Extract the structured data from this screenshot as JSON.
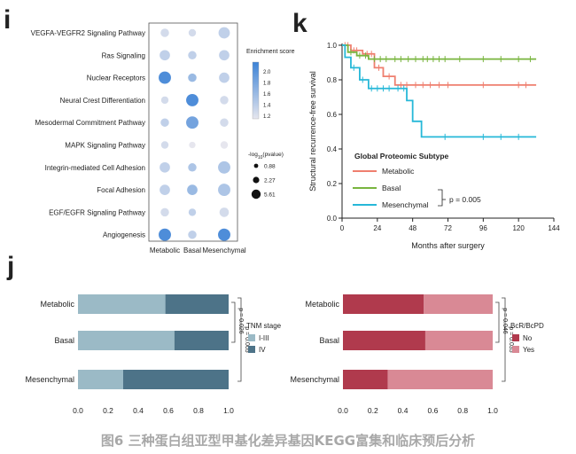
{
  "caption": "图6 三种蛋白组亚型甲基化差异基因KEGG富集和临床预后分析",
  "panels": {
    "i": "i",
    "j": "j",
    "k": "k"
  },
  "chart_data": [
    {
      "panel": "i",
      "type": "dot",
      "categories_x": [
        "Metabolic",
        "Basal",
        "Mesenchymal"
      ],
      "categories_y": [
        "VEGFA-VEGFR2 Signaling Pathway",
        "Ras Signaling",
        "Nuclear Receptors",
        "Neural Crest Differentiation",
        "Mesodermal Commitment Pathway",
        "MAPK Signaling Pathway",
        "Integrin-mediated Cell Adhesion",
        "Focal Adhesion",
        "EGF/EGFR Signaling Pathway",
        "Angiogenesis"
      ],
      "enrichment": [
        [
          1.3,
          1.3,
          1.4
        ],
        [
          1.4,
          1.4,
          1.4
        ],
        [
          2.0,
          1.6,
          1.4
        ],
        [
          1.3,
          2.0,
          1.3
        ],
        [
          1.4,
          1.8,
          1.3
        ],
        [
          1.3,
          1.2,
          1.2
        ],
        [
          1.4,
          1.5,
          1.5
        ],
        [
          1.4,
          1.6,
          1.5
        ],
        [
          1.3,
          1.4,
          1.3
        ],
        [
          2.0,
          1.4,
          2.0
        ]
      ],
      "neglog10p": [
        [
          2.5,
          2.0,
          4.0
        ],
        [
          3.5,
          2.5,
          3.5
        ],
        [
          4.5,
          2.5,
          3.5
        ],
        [
          2.0,
          4.5,
          2.5
        ],
        [
          2.5,
          4.5,
          2.5
        ],
        [
          2.0,
          1.5,
          2.0
        ],
        [
          3.5,
          2.5,
          4.5
        ],
        [
          3.5,
          3.5,
          4.5
        ],
        [
          2.5,
          2.0,
          3.0
        ],
        [
          4.5,
          2.5,
          4.5
        ]
      ],
      "colorbar": {
        "title": "Enrichment score",
        "ticks": [
          "2.0",
          "1.8",
          "1.6",
          "1.4",
          "1.2"
        ],
        "range": [
          1.2,
          2.1
        ],
        "low_color": "#e6e6ee",
        "high_color": "#3b82d6"
      },
      "size_legend": {
        "title": "-log10(pvalue)",
        "title_main": "-log",
        "title_sub": "10",
        "title_tail": "(pvalue)",
        "values": [
          "0.88",
          "2.27",
          "5.61"
        ]
      }
    },
    {
      "panel": "k",
      "type": "line",
      "title": "Global Proteomic Subtype",
      "xlabel": "Months after surgery",
      "ylabel": "Structural recurrence-free survival",
      "xlim": [
        0,
        144
      ],
      "ylim": [
        0,
        1.0
      ],
      "xticks": [
        "0",
        "24",
        "48",
        "72",
        "96",
        "120",
        "144"
      ],
      "yticks": [
        "0.0",
        "0.2",
        "0.4",
        "0.6",
        "0.8",
        "1.0"
      ],
      "series": [
        {
          "name": "Metabolic",
          "color": "#ef7f6f",
          "steps": [
            [
              0,
              1.0
            ],
            [
              6,
              0.97
            ],
            [
              14,
              0.95
            ],
            [
              22,
              0.87
            ],
            [
              28,
              0.82
            ],
            [
              36,
              0.77
            ],
            [
              132,
              0.77
            ]
          ],
          "censor": [
            2,
            4,
            8,
            10,
            17,
            20,
            25,
            32,
            40,
            44,
            50,
            55,
            60,
            66,
            72,
            96,
            120,
            125
          ]
        },
        {
          "name": "Basal",
          "color": "#79b53f",
          "steps": [
            [
              0,
              1.0
            ],
            [
              4,
              0.96
            ],
            [
              10,
              0.94
            ],
            [
              18,
              0.92
            ],
            [
              132,
              0.92
            ]
          ],
          "censor": [
            6,
            12,
            16,
            22,
            26,
            30,
            36,
            40,
            45,
            50,
            55,
            58,
            62,
            66,
            70,
            80,
            96,
            108,
            120,
            128
          ]
        },
        {
          "name": "Mesenchymal",
          "color": "#27b8d8",
          "steps": [
            [
              0,
              1.0
            ],
            [
              2,
              0.93
            ],
            [
              6,
              0.87
            ],
            [
              12,
              0.8
            ],
            [
              18,
              0.75
            ],
            [
              44,
              0.68
            ],
            [
              48,
              0.56
            ],
            [
              54,
              0.47
            ],
            [
              132,
              0.47
            ]
          ],
          "censor": [
            8,
            14,
            20,
            24,
            28,
            32,
            38,
            42,
            70,
            96,
            108,
            120
          ]
        }
      ],
      "annotation": "p = 0.005"
    },
    {
      "panel": "j-left",
      "type": "bar",
      "stacked": true,
      "horizontal": true,
      "categories": [
        "Metabolic",
        "Basal",
        "Mesenchymal"
      ],
      "series": [
        {
          "name": "I-III",
          "color": "#9bbac6",
          "values": [
            0.58,
            0.64,
            0.3
          ]
        },
        {
          "name": "IV",
          "color": "#4d7388",
          "values": [
            0.42,
            0.36,
            0.7
          ]
        }
      ],
      "legend_title": "TNM stage",
      "xticks": [
        "0.0",
        "0.2",
        "0.4",
        "0.6",
        "0.8",
        "1.0"
      ],
      "xlim": [
        0,
        1
      ],
      "pvalues": [
        "p = 0.026",
        "p = 0.005"
      ]
    },
    {
      "panel": "j-right",
      "type": "bar",
      "stacked": true,
      "horizontal": true,
      "categories": [
        "Metabolic",
        "Basal",
        "Mesenchymal"
      ],
      "series": [
        {
          "name": "No",
          "color": "#b03a4d",
          "values": [
            0.54,
            0.55,
            0.3
          ]
        },
        {
          "name": "Yes",
          "color": "#d98995",
          "values": [
            0.46,
            0.45,
            0.7
          ]
        }
      ],
      "legend_title": "BcR/BcPD",
      "xticks": [
        "0.0",
        "0.2",
        "0.4",
        "0.6",
        "0.8",
        "1.0"
      ],
      "xlim": [
        0,
        1
      ],
      "pvalues": [
        "p = 0.046",
        "p = 0.035"
      ]
    }
  ]
}
